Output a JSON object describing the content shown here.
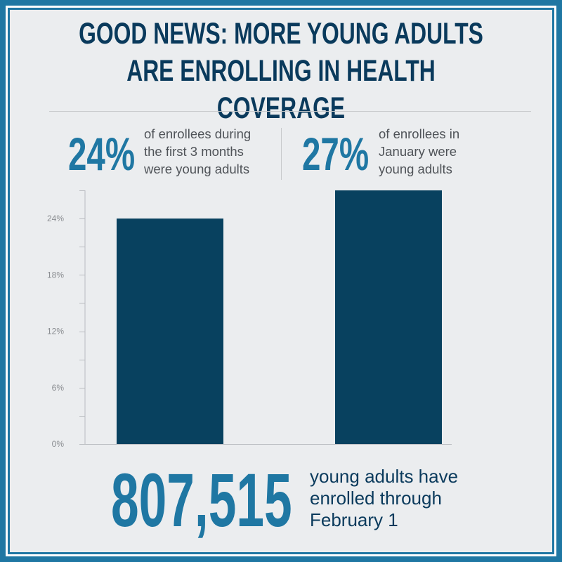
{
  "title": "GOOD NEWS: MORE YOUNG ADULTS ARE ENROLLING IN HEALTH COVERAGE",
  "stats": [
    {
      "value": "24%",
      "text": "of enrollees during\nthe first 3 months\nwere young adults"
    },
    {
      "value": "27%",
      "text": "of enrollees in\nJanuary were\nyoung adults"
    }
  ],
  "total": {
    "value": "807,515",
    "text": "young adults have\nenrolled through\nFebruary 1"
  },
  "colors": {
    "frame": "#1f77a3",
    "background": "#ebedef",
    "title": "#0a3a5c",
    "accent": "#1f77a3",
    "bar": "#08415f"
  },
  "chart_data": {
    "type": "bar",
    "categories": [
      "",
      ""
    ],
    "values": [
      24,
      27
    ],
    "yticks": [
      "0%",
      "6%",
      "12%",
      "18%",
      "24%"
    ],
    "ytick_values": [
      0,
      6,
      12,
      18,
      24
    ],
    "ylim": [
      0,
      27
    ],
    "grid": false
  }
}
